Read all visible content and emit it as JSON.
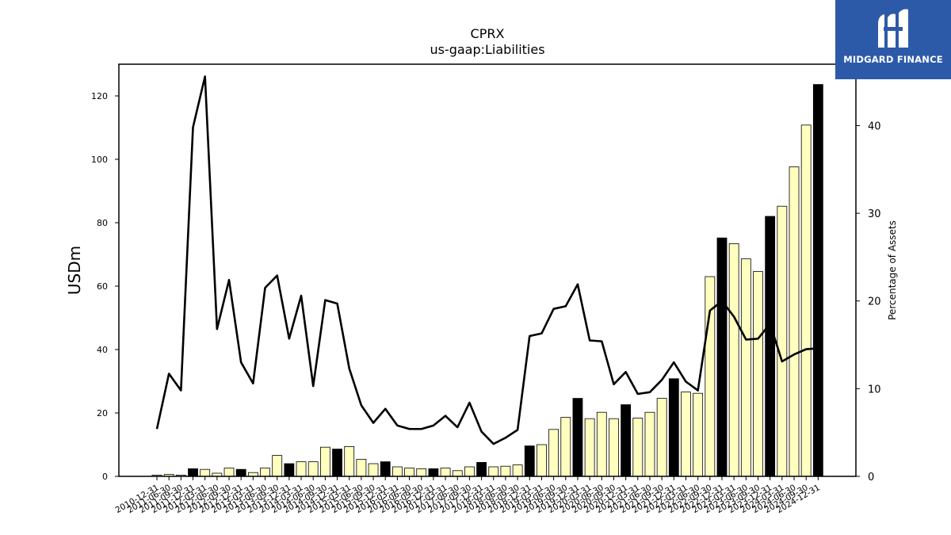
{
  "brand": {
    "name": "MIDGARD FINANCE",
    "bg_color": "#2d5aa8"
  },
  "colors": {
    "bar_light": "#ffffc0",
    "bar_dark": "#000000",
    "line": "#000000"
  },
  "chart_data": {
    "type": "bar",
    "title": "CPRX",
    "subtitle": "us-gaap:Liabilities",
    "ylabel": "USDm",
    "y2label": "Percentage of Assets",
    "ylim": [
      0,
      130
    ],
    "y2lim": [
      0,
      47
    ],
    "yticks": [
      0,
      20,
      40,
      60,
      80,
      100,
      120
    ],
    "y2ticks": [
      0,
      10,
      20,
      30,
      40
    ],
    "categories": [
      "2010-12-31",
      "2011-06-30",
      "2011-09-30",
      "2011-12-31",
      "2012-03-31",
      "2012-06-30",
      "2012-09-30",
      "2012-12-31",
      "2013-03-31",
      "2013-06-30",
      "2013-09-30",
      "2013-12-31",
      "2014-03-31",
      "2014-06-30",
      "2014-09-30",
      "2014-12-31",
      "2015-03-31",
      "2015-06-30",
      "2015-09-30",
      "2015-12-31",
      "2016-03-31",
      "2016-06-30",
      "2016-09-30",
      "2016-12-31",
      "2017-03-31",
      "2017-06-30",
      "2017-09-30",
      "2017-12-31",
      "2018-03-31",
      "2018-06-30",
      "2018-09-30",
      "2018-12-31",
      "2019-03-31",
      "2019-06-30",
      "2019-09-30",
      "2019-12-31",
      "2020-03-31",
      "2020-06-30",
      "2020-09-30",
      "2020-12-31",
      "2021-03-31",
      "2021-06-30",
      "2021-09-30",
      "2021-12-31",
      "2022-03-31",
      "2022-06-30",
      "2022-09-30",
      "2022-12-31",
      "2023-03-31",
      "2023-06-30",
      "2023-09-30",
      "2023-12-31",
      "2024-03-31",
      "2024-06-30",
      "2024-09-30",
      "2024-12-31"
    ],
    "series": [
      {
        "kind": "bar",
        "axis": "left",
        "values": [
          0.4,
          0.6,
          0.4,
          2.4,
          2.2,
          1.0,
          2.6,
          2.2,
          1.2,
          2.6,
          6.6,
          4.0,
          4.6,
          4.6,
          9.2,
          8.6,
          9.4,
          5.4,
          4.0,
          4.6,
          3.0,
          2.6,
          2.4,
          2.4,
          2.6,
          1.8,
          3.0,
          4.4,
          3.0,
          3.2,
          3.6,
          9.6,
          10.0,
          14.8,
          18.6,
          24.6,
          18.2,
          20.2,
          18.2,
          22.6,
          18.4,
          20.2,
          24.6,
          30.8,
          26.6,
          26.2,
          63.0,
          75.2,
          73.4,
          68.6,
          64.6,
          82.0,
          85.2,
          97.6,
          110.8,
          123.6
        ],
        "dark": [
          false,
          false,
          false,
          true,
          false,
          false,
          false,
          true,
          false,
          false,
          false,
          true,
          false,
          false,
          false,
          true,
          false,
          false,
          false,
          true,
          false,
          false,
          false,
          true,
          false,
          false,
          false,
          true,
          false,
          false,
          false,
          true,
          false,
          false,
          false,
          true,
          false,
          false,
          false,
          true,
          false,
          false,
          false,
          true,
          false,
          false,
          false,
          true,
          false,
          false,
          false,
          true,
          false,
          false,
          false,
          true
        ]
      },
      {
        "kind": "line",
        "axis": "right",
        "values": [
          5.4,
          11.7,
          9.8,
          39.8,
          45.6,
          16.8,
          22.4,
          13.0,
          10.6,
          21.5,
          22.9,
          15.7,
          20.6,
          10.3,
          20.1,
          19.7,
          12.3,
          8.1,
          6.1,
          7.7,
          5.8,
          5.4,
          5.4,
          5.8,
          6.9,
          5.6,
          8.4,
          5.1,
          3.7,
          4.4,
          5.3,
          16.0,
          16.3,
          19.1,
          19.4,
          21.9,
          15.5,
          15.4,
          10.5,
          11.9,
          9.4,
          9.6,
          11.0,
          13.0,
          10.8,
          9.8,
          18.9,
          20.0,
          18.2,
          15.6,
          15.7,
          17.4,
          13.1,
          13.9,
          14.5,
          14.6
        ]
      }
    ],
    "grid": false,
    "legend": "none"
  }
}
